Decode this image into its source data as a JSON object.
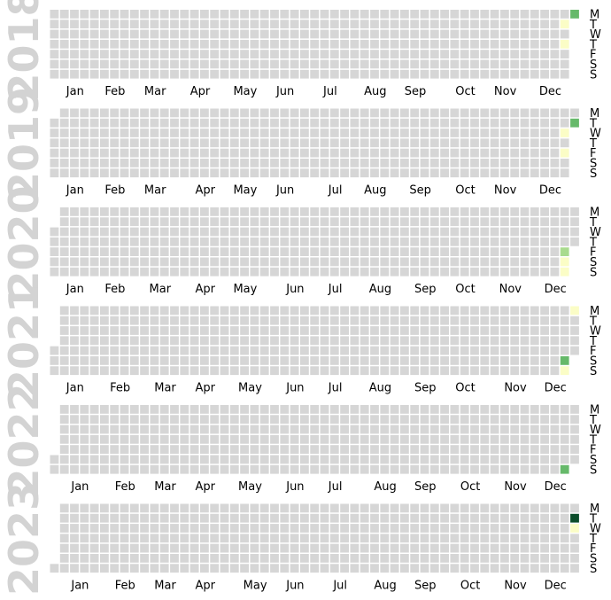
{
  "chart_data": {
    "type": "heatmap",
    "layout": "calendar-by-year",
    "colors": {
      "empty": "#d6d6d6",
      "scale": [
        "#fbfdc6",
        "#a9db8e",
        "#66b96a",
        "#0b4d2a"
      ]
    },
    "day_labels": [
      "M",
      "T",
      "W",
      "T",
      "F",
      "S",
      "S"
    ],
    "years": [
      {
        "year": "2018",
        "months": [
          "Jan",
          "Feb",
          "Mar",
          "Apr",
          "May",
          "Jun",
          "Jul",
          "Aug",
          "Sep",
          "Oct",
          "Nov",
          "Dec"
        ],
        "values": [
          {
            "date": "2018-12-31",
            "level": 3
          },
          {
            "date": "2018-12-25",
            "level": 1
          },
          {
            "date": "2018-12-27",
            "level": 1
          }
        ]
      },
      {
        "year": "2019",
        "months": [
          "Jan",
          "Feb",
          "Mar",
          "Apr",
          "May",
          "Jun",
          "Jul",
          "Aug",
          "Sep",
          "Oct",
          "Nov",
          "Dec"
        ],
        "values": [
          {
            "date": "2019-12-31",
            "level": 3
          },
          {
            "date": "2019-12-25",
            "level": 1
          },
          {
            "date": "2019-12-27",
            "level": 1
          }
        ]
      },
      {
        "year": "2020",
        "months": [
          "Jan",
          "Feb",
          "Mar",
          "Apr",
          "May",
          "Jun",
          "Jul",
          "Aug",
          "Sep",
          "Oct",
          "Nov",
          "Dec"
        ],
        "values": [
          {
            "date": "2020-12-25",
            "level": 2
          },
          {
            "date": "2020-12-26",
            "level": 1
          },
          {
            "date": "2020-12-27",
            "level": 1
          }
        ]
      },
      {
        "year": "2021",
        "months": [
          "Jan",
          "Feb",
          "Mar",
          "Apr",
          "May",
          "Jun",
          "Jul",
          "Aug",
          "Sep",
          "Oct",
          "Nov",
          "Dec"
        ],
        "values": [
          {
            "date": "2021-12-27",
            "level": 1
          },
          {
            "date": "2021-12-25",
            "level": 3
          },
          {
            "date": "2021-12-26",
            "level": 1
          }
        ]
      },
      {
        "year": "2022",
        "months": [
          "Jan",
          "Feb",
          "Mar",
          "Apr",
          "May",
          "Jun",
          "Jul",
          "Aug",
          "Sep",
          "Oct",
          "Nov",
          "Dec"
        ],
        "values": [
          {
            "date": "2022-12-25",
            "level": 3
          }
        ]
      },
      {
        "year": "2023",
        "months": [
          "Jan",
          "Feb",
          "Mar",
          "Apr",
          "May",
          "Jun",
          "Jul",
          "Aug",
          "Sep",
          "Oct",
          "Nov",
          "Dec"
        ],
        "values": [
          {
            "date": "2023-12-26",
            "level": 4
          },
          {
            "date": "2023-12-27",
            "level": 1
          }
        ]
      }
    ]
  }
}
